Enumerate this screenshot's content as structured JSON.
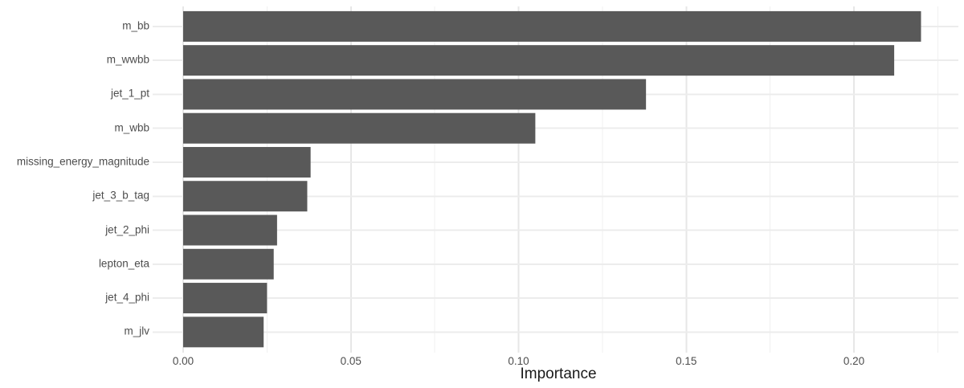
{
  "chart_data": {
    "type": "bar",
    "orientation": "horizontal",
    "title": "",
    "xlabel": "Importance",
    "ylabel": "",
    "categories": [
      "m_bb",
      "m_wwbb",
      "jet_1_pt",
      "m_wbb",
      "missing_energy_magnitude",
      "jet_3_b_tag",
      "jet_2_phi",
      "lepton_eta",
      "jet_4_phi",
      "m_jlv"
    ],
    "values": [
      0.22,
      0.212,
      0.138,
      0.105,
      0.038,
      0.037,
      0.028,
      0.027,
      0.025,
      0.024
    ],
    "x_ticks": [
      0.0,
      0.05,
      0.1,
      0.15,
      0.2
    ],
    "x_tick_labels": [
      "0.00",
      "0.05",
      "0.10",
      "0.15",
      "0.20"
    ],
    "x_minor_ticks": [
      0.025,
      0.075,
      0.125,
      0.175,
      0.225
    ],
    "xlim": [
      -0.009,
      0.2312
    ],
    "grid": "major+minor",
    "legend": "none",
    "colors": {
      "bar": "#595959",
      "grid_major": "#e7e7e7",
      "grid_minor": "#f0f0f0",
      "grid_row": "#ececec",
      "tick_label": "#4d4d4d",
      "axis_title": "#1a1a1a",
      "background": "#ffffff"
    }
  }
}
